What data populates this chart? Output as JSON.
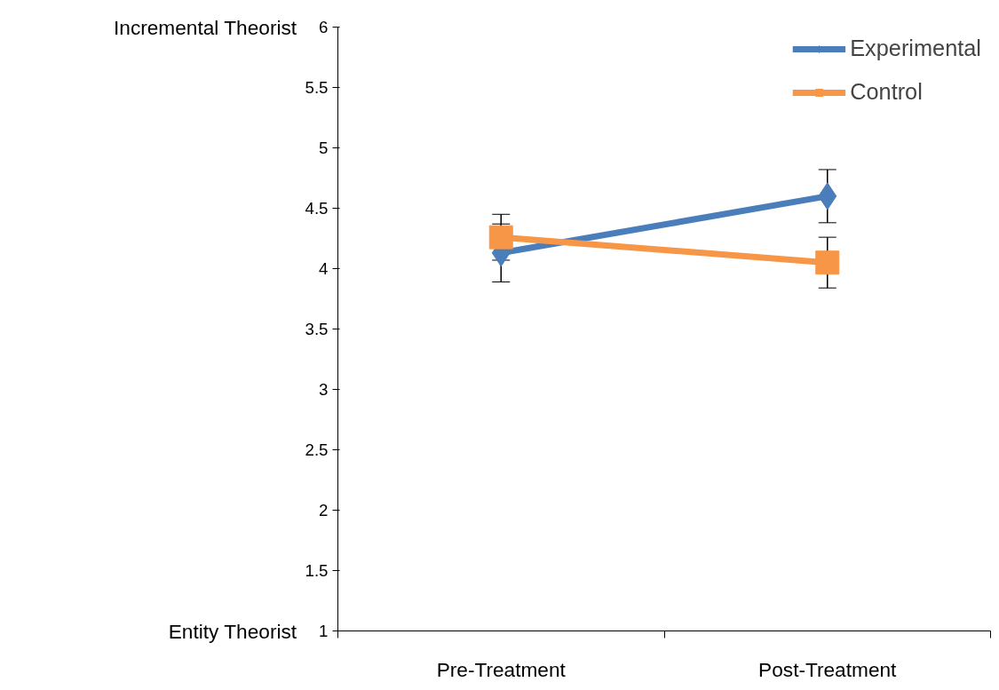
{
  "chart_data": {
    "type": "line",
    "categories": [
      "Pre-Treatment",
      "Post-Treatment"
    ],
    "series": [
      {
        "name": "Experimental",
        "color": "#4a7ebb",
        "values": [
          4.13,
          4.6
        ],
        "errors": [
          0.24,
          0.22
        ],
        "marker": "diamond"
      },
      {
        "name": "Control",
        "color": "#f79646",
        "values": [
          4.26,
          4.05
        ],
        "errors": [
          0.19,
          0.21
        ],
        "marker": "square"
      }
    ],
    "ylim": [
      1,
      6
    ],
    "yticks": [
      1,
      1.5,
      2,
      2.5,
      3,
      3.5,
      4,
      4.5,
      5,
      5.5,
      6
    ],
    "annotations": [
      "Incremental Theorist",
      "Entity Theorist"
    ],
    "grid": false,
    "legend": "top right"
  }
}
